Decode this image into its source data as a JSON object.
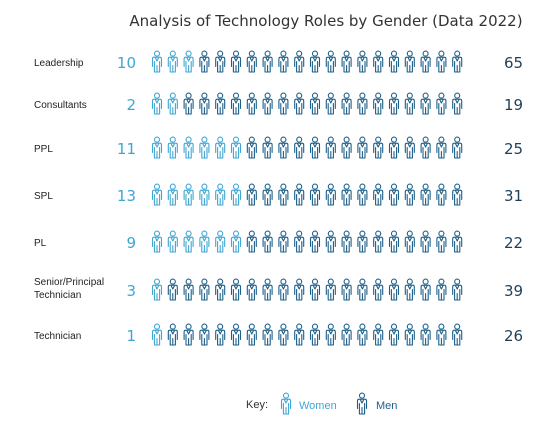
{
  "chart_data": {
    "type": "pictograph",
    "title": "Analysis of Technology Roles by Gender (Data 2022)",
    "categories": [
      "Leadership",
      "Consultants",
      "PPL",
      "SPL",
      "PL",
      "Senior/Principal\nTechnician",
      "Technician"
    ],
    "series": [
      {
        "name": "Women",
        "values": [
          10,
          2,
          11,
          13,
          9,
          3,
          1
        ],
        "color": "#3fa6d4"
      },
      {
        "name": "Men",
        "values": [
          65,
          19,
          25,
          31,
          22,
          39,
          26
        ],
        "color": "#1c5f89"
      }
    ],
    "icons_per_row": 20,
    "legend": {
      "label": "Key:",
      "position": "bottom-center"
    }
  }
}
